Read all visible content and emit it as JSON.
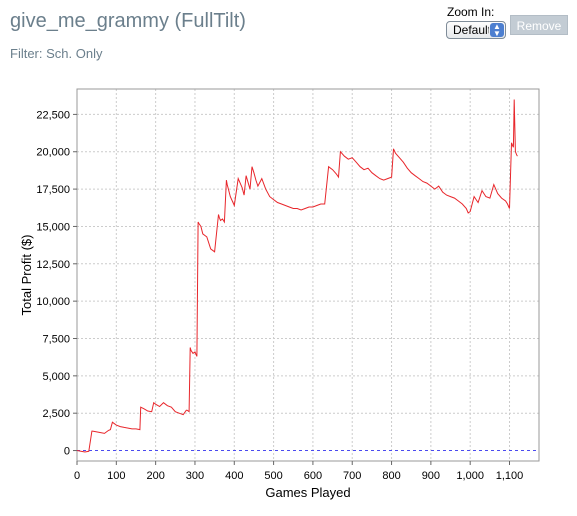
{
  "header": {
    "title": "give_me_grammy (FullTilt)",
    "filter": "Filter: Sch. Only"
  },
  "zoom": {
    "label": "Zoom In:",
    "selected": "Default",
    "remove_label": "Remove"
  },
  "colors": {
    "line": "#e8262b",
    "zero_line": "#4a4af0",
    "grid": "#cccccc",
    "muted_text": "#6b7f8c"
  },
  "chart_data": {
    "type": "line",
    "xlabel": "Games Played",
    "ylabel": "Total Profit ($)",
    "xlim": [
      0,
      1175
    ],
    "ylim": [
      -700,
      24200
    ],
    "xticks": [
      0,
      100,
      200,
      300,
      400,
      500,
      600,
      700,
      800,
      900,
      1000,
      1100
    ],
    "xtick_labels": [
      "0",
      "100",
      "200",
      "300",
      "400",
      "500",
      "600",
      "700",
      "800",
      "900",
      "1,000",
      "1,100"
    ],
    "yticks": [
      0,
      2500,
      5000,
      7500,
      10000,
      12500,
      15000,
      17500,
      20000,
      22500
    ],
    "ytick_labels": [
      "0",
      "2,500",
      "5,000",
      "7,500",
      "10,000",
      "12,500",
      "15,000",
      "17,500",
      "20,000",
      "22,500"
    ],
    "grid": true,
    "zero_line": true,
    "series": [
      {
        "x": [
          0,
          10,
          20,
          30,
          38,
          40,
          50,
          60,
          70,
          80,
          85,
          90,
          95,
          100,
          110,
          120,
          130,
          140,
          150,
          160,
          162,
          170,
          180,
          190,
          195,
          200,
          210,
          220,
          230,
          240,
          250,
          260,
          270,
          278,
          280,
          285,
          288,
          290,
          295,
          300,
          305,
          308,
          310,
          315,
          320,
          330,
          340,
          350,
          360,
          362,
          365,
          370,
          375,
          380,
          382,
          385,
          390,
          400,
          410,
          420,
          425,
          430,
          440,
          445,
          450,
          455,
          460,
          470,
          480,
          490,
          500,
          510,
          520,
          530,
          540,
          550,
          560,
          570,
          580,
          590,
          600,
          610,
          620,
          630,
          640,
          650,
          660,
          665,
          670,
          680,
          690,
          700,
          710,
          720,
          730,
          740,
          750,
          760,
          770,
          780,
          790,
          800,
          805,
          810,
          820,
          830,
          840,
          850,
          860,
          870,
          880,
          890,
          900,
          910,
          920,
          930,
          940,
          950,
          960,
          970,
          980,
          990,
          995,
          1000,
          1010,
          1015,
          1020,
          1030,
          1040,
          1050,
          1060,
          1070,
          1080,
          1090,
          1095,
          1100,
          1105,
          1108,
          1110,
          1112,
          1115,
          1118,
          1120
        ],
        "values": [
          0,
          -50,
          -100,
          -50,
          1300,
          1300,
          1250,
          1200,
          1150,
          1350,
          1400,
          1900,
          1800,
          1700,
          1600,
          1550,
          1500,
          1450,
          1450,
          1400,
          2900,
          2800,
          2650,
          2600,
          3200,
          3100,
          2950,
          3200,
          3000,
          2900,
          2600,
          2500,
          2400,
          2700,
          2700,
          2600,
          6900,
          6700,
          6500,
          6600,
          6300,
          15300,
          15200,
          15000,
          14500,
          14300,
          13500,
          13300,
          15800,
          15600,
          15400,
          15500,
          15300,
          18100,
          17800,
          17500,
          17000,
          16400,
          18200,
          17600,
          17100,
          18400,
          17500,
          19000,
          18600,
          18100,
          17700,
          18200,
          17500,
          17000,
          16800,
          16600,
          16500,
          16400,
          16300,
          16200,
          16200,
          16100,
          16200,
          16300,
          16300,
          16400,
          16500,
          16500,
          19000,
          18800,
          18500,
          18300,
          20000,
          19700,
          19500,
          19600,
          19300,
          19000,
          18800,
          18900,
          18600,
          18400,
          18200,
          18100,
          18200,
          18300,
          20200,
          19900,
          19600,
          19300,
          18900,
          18600,
          18400,
          18200,
          18000,
          17900,
          17700,
          17500,
          17700,
          17300,
          17100,
          17000,
          16900,
          16700,
          16500,
          16200,
          15900,
          16000,
          17000,
          16800,
          16600,
          17400,
          17000,
          16900,
          17800,
          17200,
          16900,
          16700,
          16500,
          16200,
          20600,
          20400,
          20300,
          23500,
          20000,
          19800,
          19700
        ]
      }
    ]
  }
}
